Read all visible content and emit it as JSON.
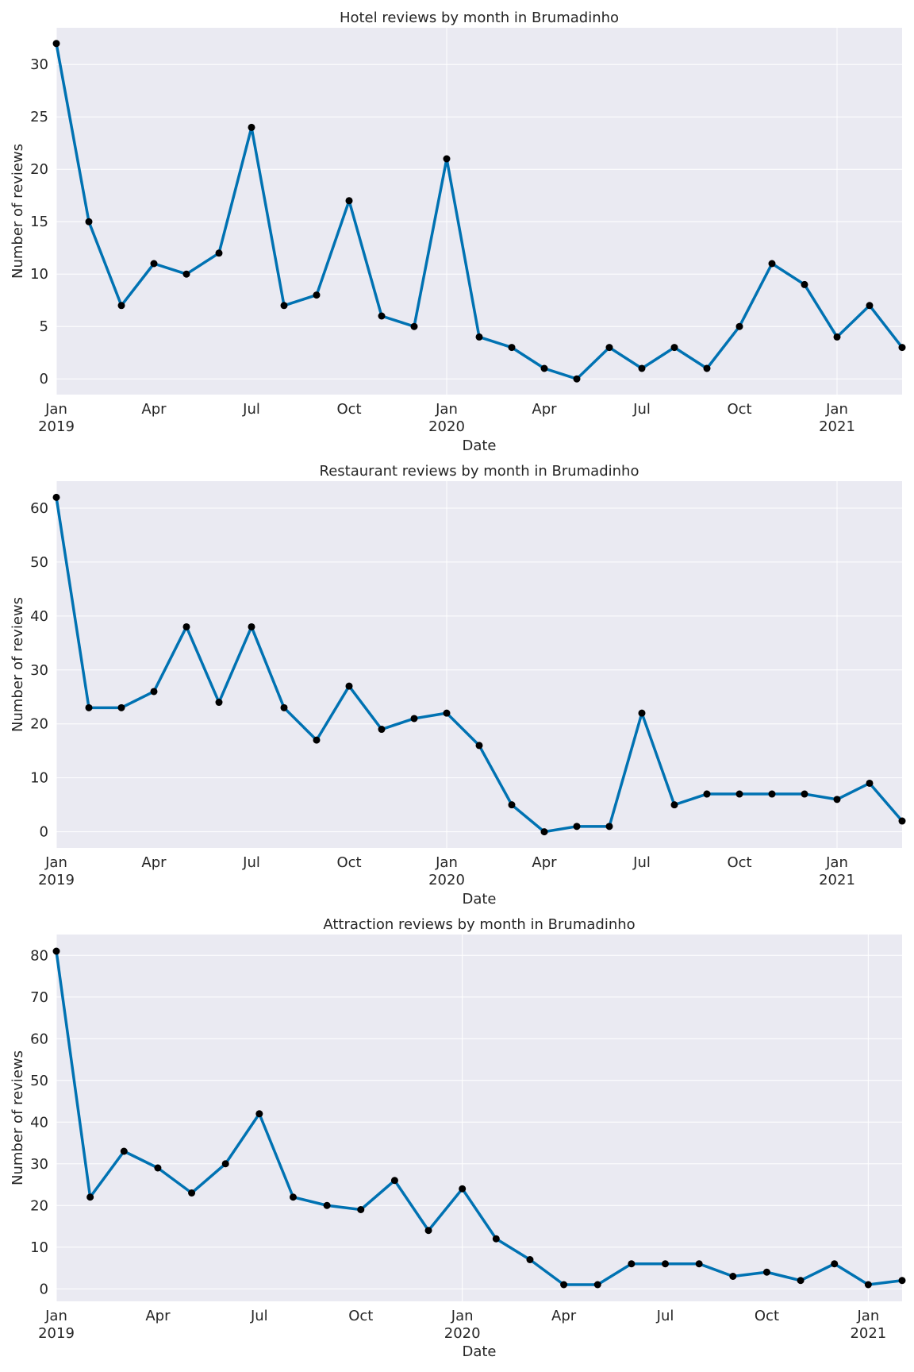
{
  "chart_data": [
    {
      "type": "line",
      "title": "Hotel reviews by month in Brumadinho",
      "xlabel": "Date",
      "ylabel": "Number of reviews",
      "x": [
        "2019-01",
        "2019-02",
        "2019-03",
        "2019-04",
        "2019-05",
        "2019-06",
        "2019-07",
        "2019-08",
        "2019-09",
        "2019-10",
        "2019-11",
        "2019-12",
        "2020-01",
        "2020-02",
        "2020-03",
        "2020-04",
        "2020-05",
        "2020-06",
        "2020-07",
        "2020-08",
        "2020-09",
        "2020-10",
        "2020-11",
        "2020-12",
        "2021-01",
        "2021-02",
        "2021-03"
      ],
      "values": [
        32,
        15,
        7,
        11,
        10,
        12,
        24,
        7,
        8,
        17,
        6,
        5,
        21,
        4,
        3,
        1,
        0,
        3,
        1,
        3,
        1,
        5,
        11,
        9,
        4,
        7,
        3
      ],
      "ylim": [
        -1.5,
        33.5
      ],
      "yticks": [
        0,
        5,
        10,
        15,
        20,
        25,
        30
      ],
      "xticks": [
        {
          "date": "2019-01",
          "label": "Jan",
          "year": "2019"
        },
        {
          "date": "2019-04",
          "label": "Apr",
          "year": ""
        },
        {
          "date": "2019-07",
          "label": "Jul",
          "year": ""
        },
        {
          "date": "2019-10",
          "label": "Oct",
          "year": ""
        },
        {
          "date": "2020-01",
          "label": "Jan",
          "year": "2020"
        },
        {
          "date": "2020-04",
          "label": "Apr",
          "year": ""
        },
        {
          "date": "2020-07",
          "label": "Jul",
          "year": ""
        },
        {
          "date": "2020-10",
          "label": "Oct",
          "year": ""
        },
        {
          "date": "2021-01",
          "label": "Jan",
          "year": "2021"
        }
      ],
      "grid": true,
      "line_color": "#0072b2",
      "marker_color": "#000000",
      "background": "#eaeaf2"
    },
    {
      "type": "line",
      "title": "Restaurant reviews by month in Brumadinho",
      "xlabel": "Date",
      "ylabel": "Number of reviews",
      "x": [
        "2019-01",
        "2019-02",
        "2019-03",
        "2019-04",
        "2019-05",
        "2019-06",
        "2019-07",
        "2019-08",
        "2019-09",
        "2019-10",
        "2019-11",
        "2019-12",
        "2020-01",
        "2020-02",
        "2020-03",
        "2020-04",
        "2020-05",
        "2020-06",
        "2020-07",
        "2020-08",
        "2020-09",
        "2020-10",
        "2020-11",
        "2020-12",
        "2021-01",
        "2021-02",
        "2021-03"
      ],
      "values": [
        62,
        23,
        23,
        26,
        38,
        24,
        38,
        23,
        17,
        27,
        19,
        21,
        22,
        16,
        5,
        0,
        1,
        1,
        22,
        5,
        7,
        7,
        7,
        7,
        6,
        9,
        2
      ],
      "ylim": [
        -3,
        65
      ],
      "yticks": [
        0,
        10,
        20,
        30,
        40,
        50,
        60
      ],
      "xticks": [
        {
          "date": "2019-01",
          "label": "Jan",
          "year": "2019"
        },
        {
          "date": "2019-04",
          "label": "Apr",
          "year": ""
        },
        {
          "date": "2019-07",
          "label": "Jul",
          "year": ""
        },
        {
          "date": "2019-10",
          "label": "Oct",
          "year": ""
        },
        {
          "date": "2020-01",
          "label": "Jan",
          "year": "2020"
        },
        {
          "date": "2020-04",
          "label": "Apr",
          "year": ""
        },
        {
          "date": "2020-07",
          "label": "Jul",
          "year": ""
        },
        {
          "date": "2020-10",
          "label": "Oct",
          "year": ""
        },
        {
          "date": "2021-01",
          "label": "Jan",
          "year": "2021"
        }
      ],
      "grid": true,
      "line_color": "#0072b2",
      "marker_color": "#000000",
      "background": "#eaeaf2"
    },
    {
      "type": "line",
      "title": "Attraction reviews by month in Brumadinho",
      "xlabel": "Date",
      "ylabel": "Number of reviews",
      "x": [
        "2019-01",
        "2019-02",
        "2019-03",
        "2019-04",
        "2019-05",
        "2019-06",
        "2019-07",
        "2019-08",
        "2019-09",
        "2019-10",
        "2019-11",
        "2019-12",
        "2020-01",
        "2020-02",
        "2020-03",
        "2020-04",
        "2020-05",
        "2020-06",
        "2020-07",
        "2020-08",
        "2020-09",
        "2020-10",
        "2020-11",
        "2020-12",
        "2021-01",
        "2021-02"
      ],
      "values": [
        81,
        22,
        33,
        29,
        23,
        30,
        42,
        22,
        20,
        19,
        26,
        14,
        24,
        12,
        7,
        1,
        1,
        6,
        6,
        6,
        3,
        4,
        2,
        6,
        1,
        2
      ],
      "ylim": [
        -3,
        85
      ],
      "yticks": [
        0,
        10,
        20,
        30,
        40,
        50,
        60,
        70,
        80
      ],
      "xticks": [
        {
          "date": "2019-01",
          "label": "Jan",
          "year": "2019"
        },
        {
          "date": "2019-04",
          "label": "Apr",
          "year": ""
        },
        {
          "date": "2019-07",
          "label": "Jul",
          "year": ""
        },
        {
          "date": "2019-10",
          "label": "Oct",
          "year": ""
        },
        {
          "date": "2020-01",
          "label": "Jan",
          "year": "2020"
        },
        {
          "date": "2020-04",
          "label": "Apr",
          "year": ""
        },
        {
          "date": "2020-07",
          "label": "Jul",
          "year": ""
        },
        {
          "date": "2020-10",
          "label": "Oct",
          "year": ""
        },
        {
          "date": "2021-01",
          "label": "Jan",
          "year": "2021"
        }
      ],
      "grid": true,
      "line_color": "#0072b2",
      "marker_color": "#000000",
      "background": "#eaeaf2"
    }
  ]
}
